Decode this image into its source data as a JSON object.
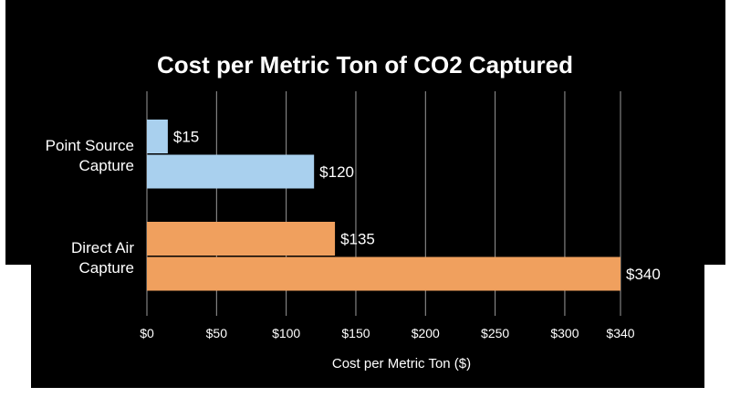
{
  "chart_data": {
    "type": "bar",
    "orientation": "horizontal",
    "title": "Cost per Metric Ton of CO2 Captured",
    "xlabel": "Cost per Metric Ton ($)",
    "ylabel": "",
    "xlim": [
      0,
      340
    ],
    "x_ticks": [
      0,
      50,
      100,
      150,
      200,
      250,
      300,
      340
    ],
    "x_tick_labels": [
      "$0",
      "$50",
      "$100",
      "$150",
      "$200",
      "$250",
      "$300",
      "$340"
    ],
    "grid": "vertical",
    "legend": "none",
    "groups": [
      {
        "label": [
          "Point Source",
          "Capture"
        ],
        "color": "#a9d0ee",
        "bars": [
          {
            "value": 15,
            "label": "$15"
          },
          {
            "value": 120,
            "label": "$120"
          }
        ]
      },
      {
        "label": [
          "Direct Air",
          "Capture"
        ],
        "color": "#f0a05e",
        "bars": [
          {
            "value": 135,
            "label": "$135"
          },
          {
            "value": 340,
            "label": "$340"
          }
        ]
      }
    ]
  }
}
